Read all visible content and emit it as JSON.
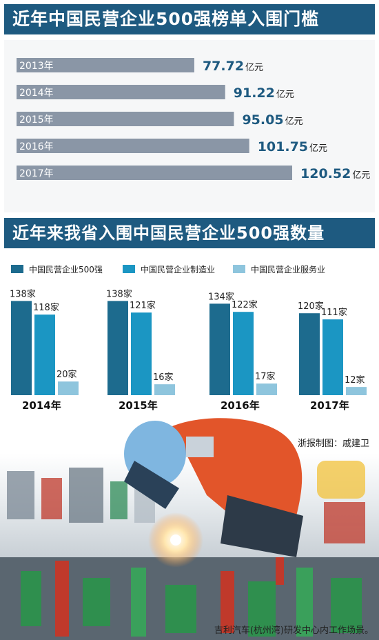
{
  "title1": "近年中国民营企业500强榜单入围门槛",
  "title2": "近年来我省入围中国民营企业500强数量",
  "chart_data": [
    {
      "type": "bar",
      "orientation": "horizontal",
      "categories": [
        "2013年",
        "2014年",
        "2015年",
        "2016年",
        "2017年"
      ],
      "values": [
        77.72,
        91.22,
        95.05,
        101.75,
        120.52
      ],
      "value_labels": [
        "77.72",
        "91.22",
        "95.05",
        "101.75",
        "120.52"
      ],
      "unit": "亿元",
      "bar_color": "#8a96a6"
    },
    {
      "type": "bar",
      "categories": [
        "2014年",
        "2015年",
        "2016年",
        "2017年"
      ],
      "series": [
        {
          "name": "中国民营企业500强",
          "values": [
            138,
            138,
            134,
            120
          ],
          "labels": [
            "138家",
            "138家",
            "134家",
            "120家"
          ],
          "color": "#1d6b8e"
        },
        {
          "name": "中国民营企业制造业",
          "values": [
            118,
            121,
            122,
            111
          ],
          "labels": [
            "118家",
            "121家",
            "122家",
            "111家"
          ],
          "color": "#1b96c3"
        },
        {
          "name": "中国民营企业服务业",
          "values": [
            20,
            16,
            17,
            12
          ],
          "labels": [
            "20家",
            "16家",
            "17家",
            "12家"
          ],
          "color": "#8ec5dd"
        }
      ],
      "legend_position": "top"
    }
  ],
  "credit": "浙报制图：戚建卫",
  "caption": "吉利汽车(杭州湾)研发中心内工作场景。"
}
